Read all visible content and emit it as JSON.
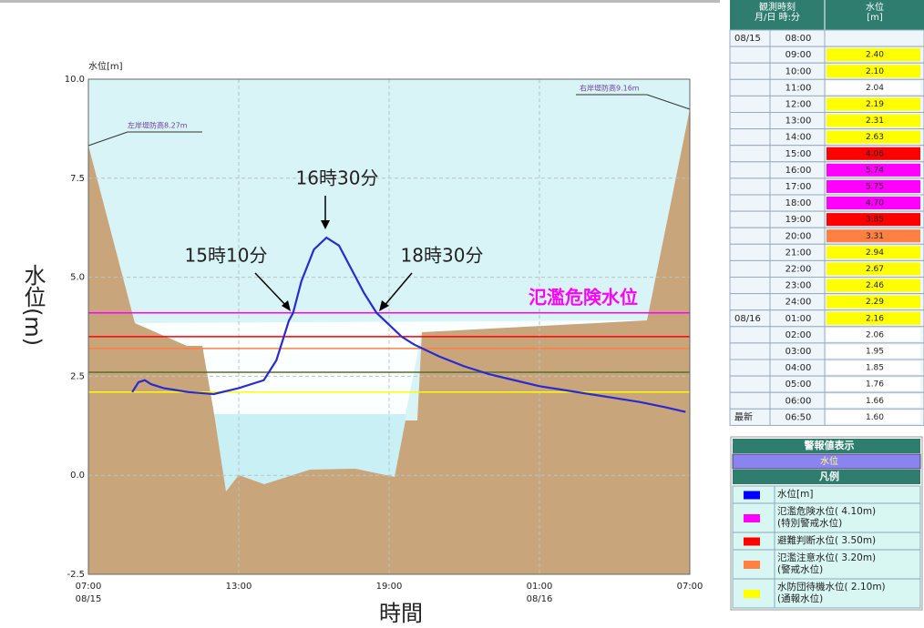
{
  "chart_data": {
    "type": "line",
    "y_axis_title": "水位[m]",
    "y_label": "水位(m)",
    "x_label": "時間",
    "xlim": [
      0,
      24
    ],
    "ylim": [
      -2.5,
      10
    ],
    "yticks": [
      {
        "value": -2.5,
        "label": "-2.5"
      },
      {
        "value": 0,
        "label": "0.0"
      },
      {
        "value": 2.5,
        "label": "2.5"
      },
      {
        "value": 5,
        "label": "5.0"
      },
      {
        "value": 7.5,
        "label": "7.5"
      },
      {
        "value": 10,
        "label": "10.0"
      }
    ],
    "xticks": [
      {
        "value": 0,
        "label": "07:00",
        "date": "08/15"
      },
      {
        "value": 6,
        "label": "13:00"
      },
      {
        "value": 12,
        "label": "19:00"
      },
      {
        "value": 18,
        "label": "01:00",
        "date": "08/16"
      },
      {
        "value": 24,
        "label": "07:00"
      }
    ],
    "grid": true,
    "series": [
      {
        "name": "水位[m]",
        "color": "#2a2ad0",
        "x": [
          1.75,
          2,
          2.25,
          2.5,
          3,
          3.5,
          4,
          5,
          6,
          7,
          7.5,
          8,
          8.17,
          8.5,
          9,
          9.5,
          10,
          10.5,
          11,
          11.5,
          12,
          12.5,
          13,
          14,
          15,
          16,
          17,
          18,
          19,
          20,
          21,
          22,
          23,
          23.83
        ],
        "values": [
          2.1,
          2.35,
          2.4,
          2.3,
          2.2,
          2.15,
          2.1,
          2.05,
          2.2,
          2.4,
          2.9,
          3.9,
          4.1,
          4.9,
          5.7,
          6.0,
          5.8,
          5.2,
          4.6,
          4.1,
          3.8,
          3.5,
          3.3,
          3.0,
          2.75,
          2.55,
          2.4,
          2.25,
          2.15,
          2.05,
          1.95,
          1.85,
          1.72,
          1.6
        ]
      }
    ],
    "thresholds": [
      {
        "value": 4.1,
        "color": "#ff00ff"
      },
      {
        "value": 3.5,
        "color": "#ff0000"
      },
      {
        "value": 3.2,
        "color": "#ff8040"
      },
      {
        "value": 2.6,
        "color": "#5a6b2f"
      },
      {
        "value": 2.1,
        "color": "#ffff00"
      }
    ],
    "annotations": [
      "16時30分",
      "15時10分",
      "18時30分",
      "氾濫危険水位"
    ],
    "bank_labels": [
      "左岸堤防高8.27m",
      "右岸堤防高9.16m"
    ]
  },
  "table": {
    "header": [
      [
        "観測時刻",
        "月/日 時:分"
      ],
      [
        "水位",
        "[m]"
      ]
    ],
    "rows": [
      {
        "date": "08/15",
        "time": "08:00",
        "value": null,
        "color": null
      },
      {
        "date": null,
        "time": "09:00",
        "value": "2.40",
        "color": "#ffff00"
      },
      {
        "date": null,
        "time": "10:00",
        "value": "2.10",
        "color": "#ffff00"
      },
      {
        "date": null,
        "time": "11:00",
        "value": "2.04",
        "color": "#ffffff"
      },
      {
        "date": null,
        "time": "12:00",
        "value": "2.19",
        "color": "#ffff00"
      },
      {
        "date": null,
        "time": "13:00",
        "value": "2.31",
        "color": "#ffff00"
      },
      {
        "date": null,
        "time": "14:00",
        "value": "2.63",
        "color": "#ffff00"
      },
      {
        "date": null,
        "time": "15:00",
        "value": "4.06",
        "color": "#ff0000"
      },
      {
        "date": null,
        "time": "16:00",
        "value": "5.74",
        "color": "#ff00ff"
      },
      {
        "date": null,
        "time": "17:00",
        "value": "5.75",
        "color": "#ff00ff"
      },
      {
        "date": null,
        "time": "18:00",
        "value": "4.70",
        "color": "#ff00ff"
      },
      {
        "date": null,
        "time": "19:00",
        "value": "3.85",
        "color": "#ff0000"
      },
      {
        "date": null,
        "time": "20:00",
        "value": "3.31",
        "color": "#ff8040"
      },
      {
        "date": null,
        "time": "21:00",
        "value": "2.94",
        "color": "#ffff00"
      },
      {
        "date": null,
        "time": "22:00",
        "value": "2.67",
        "color": "#ffff00"
      },
      {
        "date": null,
        "time": "23:00",
        "value": "2.46",
        "color": "#ffff00"
      },
      {
        "date": null,
        "time": "24:00",
        "value": "2.29",
        "color": "#ffff00"
      },
      {
        "date": "08/16",
        "time": "01:00",
        "value": "2.16",
        "color": "#ffff00"
      },
      {
        "date": null,
        "time": "02:00",
        "value": "2.06",
        "color": "#ffffff"
      },
      {
        "date": null,
        "time": "03:00",
        "value": "1.95",
        "color": "#ffffff"
      },
      {
        "date": null,
        "time": "04:00",
        "value": "1.85",
        "color": "#ffffff"
      },
      {
        "date": null,
        "time": "05:00",
        "value": "1.76",
        "color": "#ffffff"
      },
      {
        "date": null,
        "time": "06:00",
        "value": "1.66",
        "color": "#ffffff"
      },
      {
        "date": "最新",
        "time": "06:50",
        "value": "1.60",
        "color": "#ffffff"
      }
    ]
  },
  "legend": {
    "title": "警報値表示",
    "subtitle": "水位",
    "heading": "凡例",
    "items": [
      {
        "color": "#0000ff",
        "lines": [
          "水位[m]"
        ]
      },
      {
        "color": "#ff00ff",
        "lines": [
          "氾濫危険水位( 4.10m)",
          "(特別警戒水位)"
        ]
      },
      {
        "color": "#ff0000",
        "lines": [
          "避難判断水位( 3.50m)"
        ]
      },
      {
        "color": "#ff8040",
        "lines": [
          "氾濫注意水位( 3.20m)",
          "(警戒水位)"
        ]
      },
      {
        "color": "#ffff00",
        "lines": [
          "水防団待機水位( 2.10m)",
          "(通報水位)"
        ]
      }
    ]
  }
}
